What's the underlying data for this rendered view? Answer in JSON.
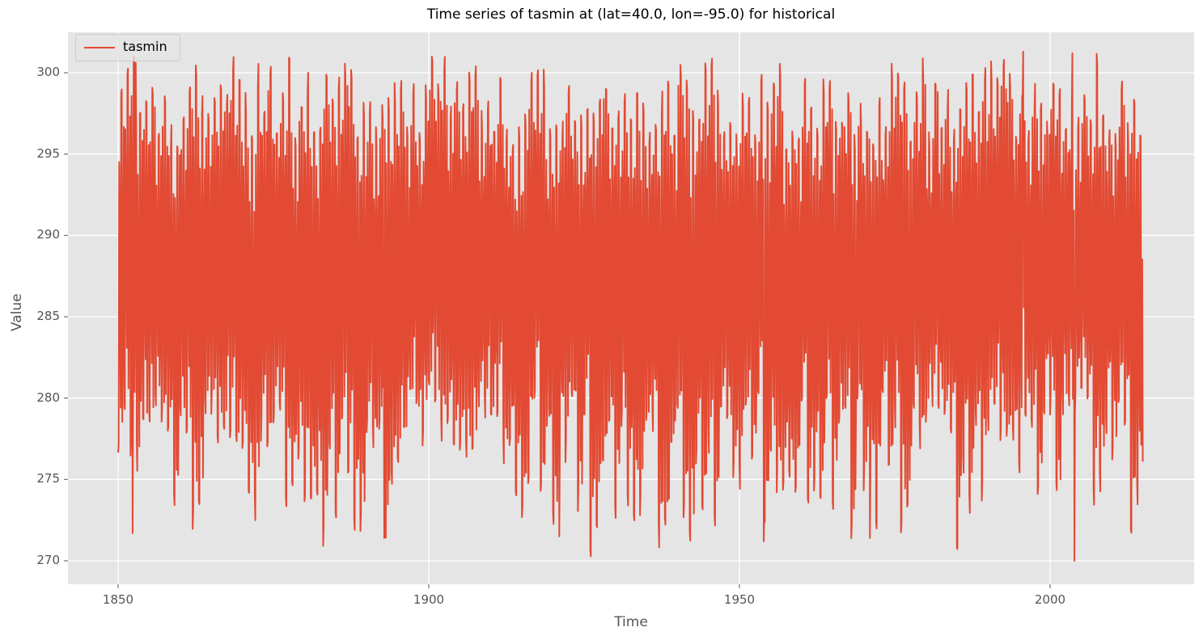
{
  "chart_data": {
    "type": "line",
    "title": "Time series of tasmin at (lat=40.0, lon=-95.0) for historical",
    "xlabel": "Time",
    "ylabel": "Value",
    "xlim": [
      1842,
      2023
    ],
    "ylim": [
      268.4,
      302.4
    ],
    "x_ticks": [
      1850,
      1900,
      1950,
      2000
    ],
    "y_ticks": [
      270,
      275,
      280,
      285,
      290,
      295,
      300
    ],
    "grid": true,
    "legend": {
      "position": "upper left",
      "entries": [
        "tasmin"
      ]
    },
    "series": [
      {
        "name": "tasmin",
        "color": "#e24a33",
        "x_start": 1850.0,
        "x_end": 2014.95,
        "sampling": "monthly",
        "mean": 287.0,
        "annual_max_range": [
          296.5,
          301.3
        ],
        "annual_min_range": [
          270.0,
          279.5
        ],
        "notable_points": [
          {
            "x": 1850.1,
            "y": 277.1
          },
          {
            "x": 1852.3,
            "y": 271.7
          },
          {
            "x": 1852.8,
            "y": 300.6
          },
          {
            "x": 1892.8,
            "y": 271.4
          },
          {
            "x": 1921.0,
            "y": 271.5
          },
          {
            "x": 1953.9,
            "y": 271.2
          },
          {
            "x": 1971.0,
            "y": 271.4
          },
          {
            "x": 1995.7,
            "y": 301.3
          },
          {
            "x": 2003.9,
            "y": 270.0
          },
          {
            "x": 2003.6,
            "y": 301.2
          },
          {
            "x": 2014.9,
            "y": 276.1
          }
        ]
      }
    ]
  }
}
